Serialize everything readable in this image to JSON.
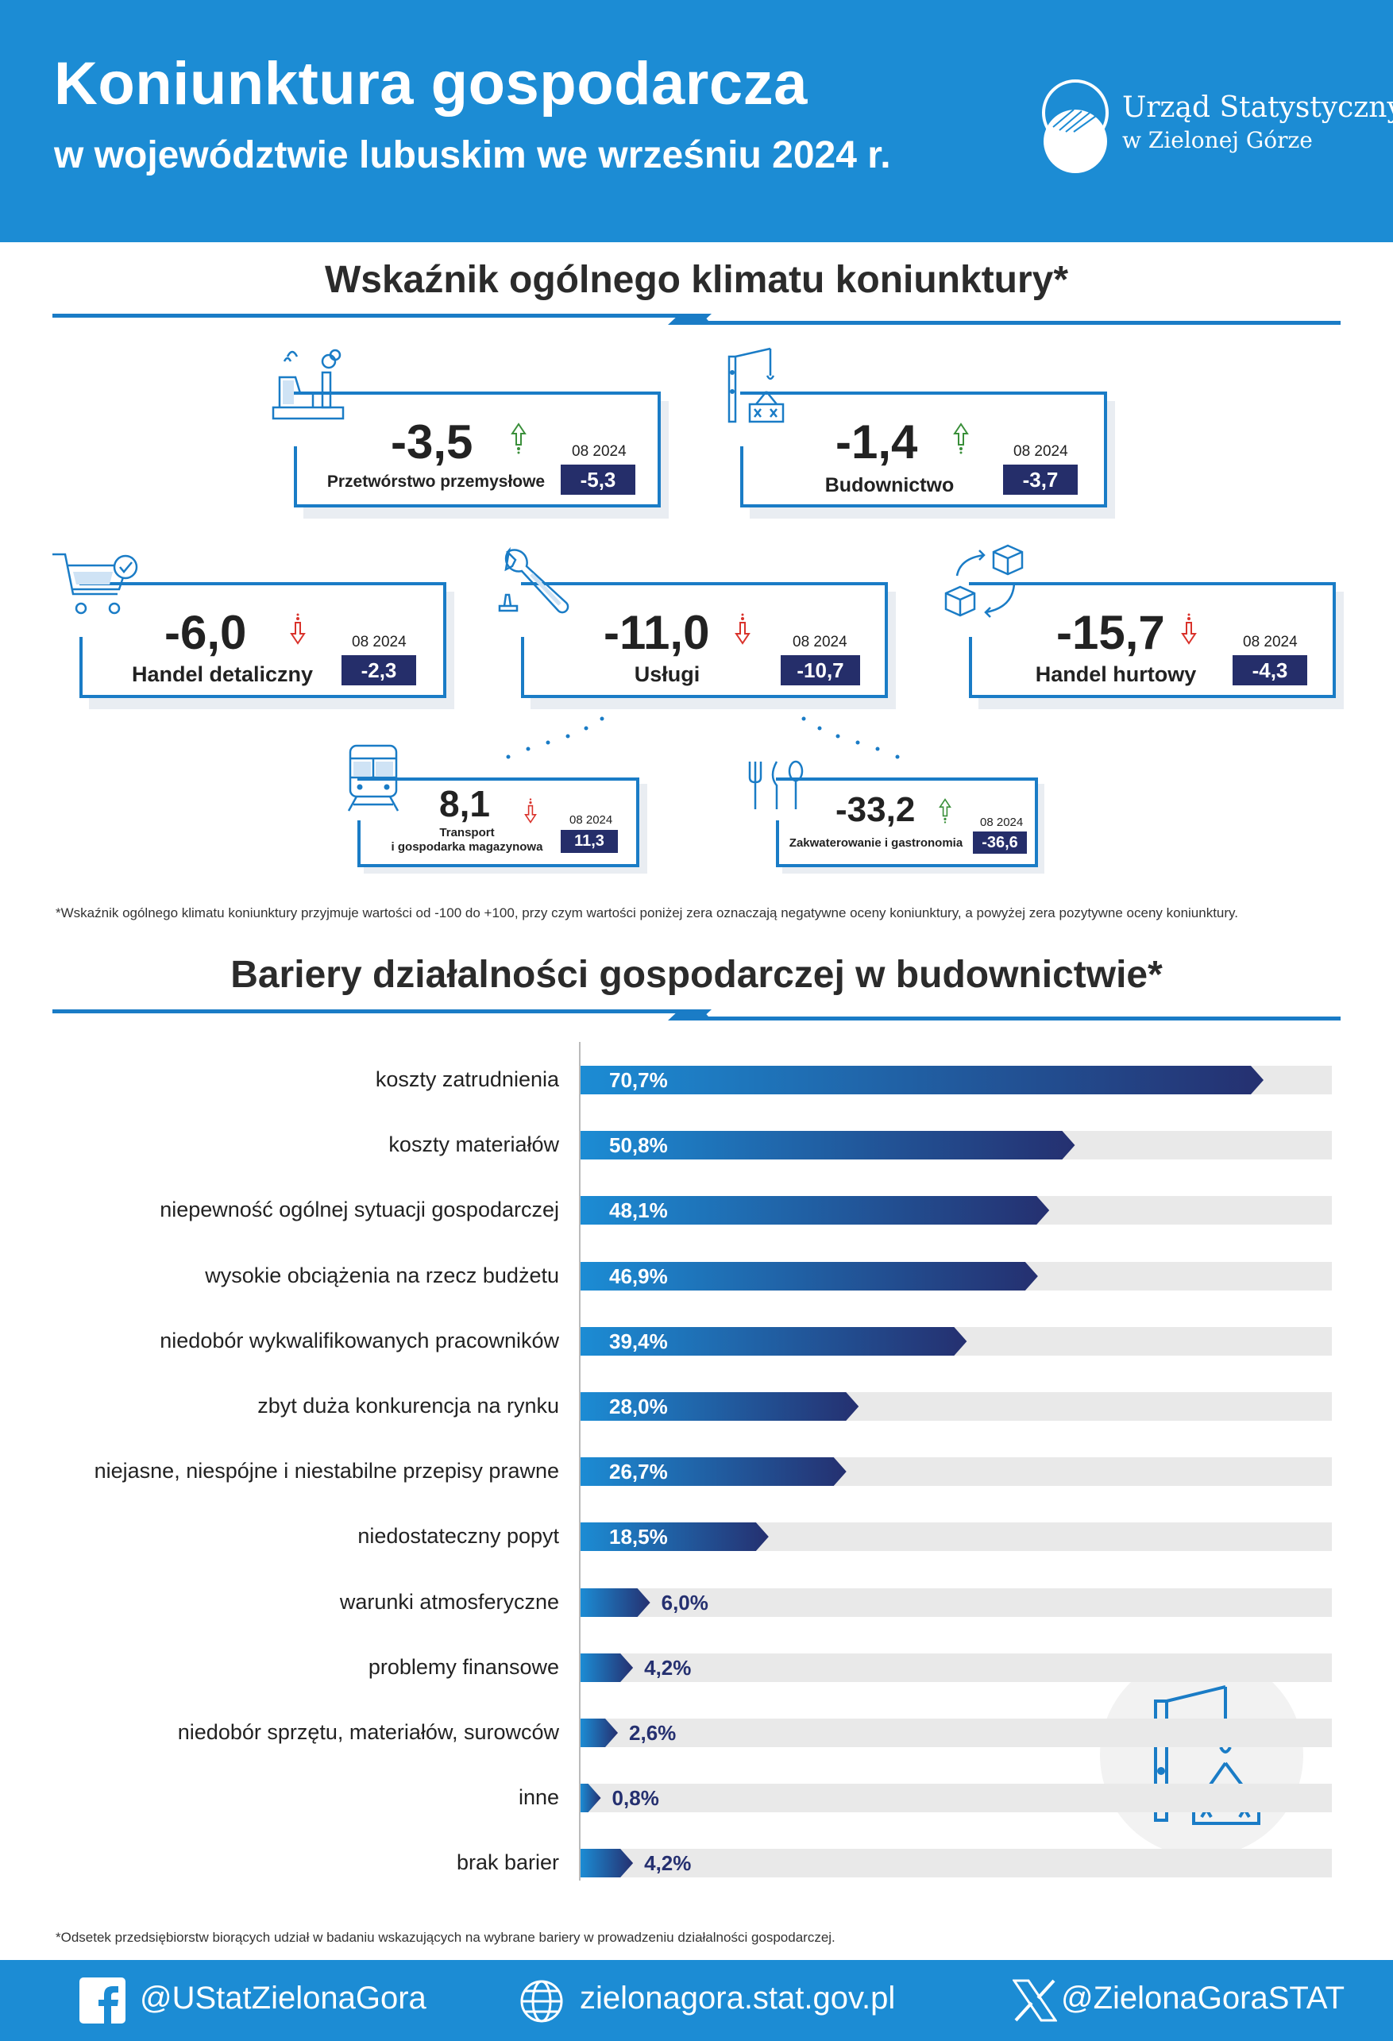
{
  "header": {
    "title": "Koniunktura gospodarcza",
    "subtitle": "w województwie lubuskim we wrześniu 2024 r.",
    "logo_name": "Urząd Statystyczny",
    "logo_sub": "w Zielonej Górze"
  },
  "climate": {
    "title": "Wskaźnik ogólnego klimatu koniunktury*",
    "prev_label": "08 2024",
    "cards": [
      {
        "id": "przetworstwo",
        "label": "Przetwórstwo przemysłowe",
        "value": "-3,5",
        "prev": "-5,3",
        "trend": "up",
        "icon": "factory-icon"
      },
      {
        "id": "budownictwo",
        "label": "Budownictwo",
        "value": "-1,4",
        "prev": "-3,7",
        "trend": "up",
        "icon": "crane-icon"
      },
      {
        "id": "handel-detaliczny",
        "label": "Handel detaliczny",
        "value": "-6,0",
        "prev": "-2,3",
        "trend": "down",
        "icon": "shopping-cart-icon"
      },
      {
        "id": "uslugi",
        "label": "Usługi",
        "value": "-11,0",
        "prev": "-10,7",
        "trend": "down",
        "icon": "wrench-icon"
      },
      {
        "id": "handel-hurtowy",
        "label": "Handel hurtowy",
        "value": "-15,7",
        "prev": "-4,3",
        "trend": "down",
        "icon": "boxes-cycle-icon"
      },
      {
        "id": "transport",
        "label": "Transport\ni gospodarka magazynowa",
        "value": "8,1",
        "prev": "11,3",
        "trend": "down",
        "icon": "train-icon"
      },
      {
        "id": "zakwaterowanie",
        "label": "Zakwaterowanie i gastronomia",
        "value": "-33,2",
        "prev": "-36,6",
        "trend": "up",
        "icon": "cutlery-icon"
      }
    ],
    "footnote": "*Wskaźnik ogólnego klimatu koniunktury przyjmuje wartości od -100 do +100, przy czym wartości poniżej zera oznaczają negatywne oceny koniunktury, a powyżej zera pozytywne oceny koniunktury.",
    "colors": {
      "up": "#3a8f3a",
      "down": "#d9322b",
      "accent": "#1a7cc6",
      "dark": "#252e6a"
    }
  },
  "barriers": {
    "title": "Bariery działalności gospodarczej w budownictwie*",
    "footnote": "*Odsetek przedsiębiorstw biorących udział w badaniu wskazujących na wybrane bariery w prowadzeniu działalności gospodarczej."
  },
  "chart_data": {
    "type": "bar",
    "orientation": "horizontal",
    "title": "Bariery działalności gospodarczej w budownictwie*",
    "unit": "%",
    "xlim": [
      0,
      100
    ],
    "categories": [
      "koszty zatrudnienia",
      "koszty materiałów",
      "niepewność ogólnej sytuacji gospodarczej",
      "wysokie obciążenia na rzecz budżetu",
      "niedobór wykwalifikowanych pracowników",
      "zbyt duża konkurencja na rynku",
      "niejasne, niespójne i niestabilne przepisy prawne",
      "niedostateczny popyt",
      "warunki atmosferyczne",
      "problemy finansowe",
      "niedobór sprzętu, materiałów, surowców",
      "inne",
      "brak barier"
    ],
    "values": [
      70.7,
      50.8,
      48.1,
      46.9,
      39.4,
      28.0,
      26.7,
      18.5,
      6.0,
      4.2,
      2.6,
      0.8,
      4.2
    ],
    "value_labels": [
      "70,7%",
      "50,8%",
      "48,1%",
      "46,9%",
      "39,4%",
      "28,0%",
      "26,7%",
      "18,5%",
      "6,0%",
      "4,2%",
      "2,6%",
      "0,8%",
      "4,2%"
    ],
    "colors": {
      "bar_start": "#1c8cd4",
      "bar_end": "#253070",
      "track": "#e9e9e9",
      "label_outside": "#253070"
    }
  },
  "footer": {
    "facebook": "@UStatZielonaGora",
    "website": "zielonagora.stat.gov.pl",
    "x": "@ZielonaGoraSTAT"
  }
}
